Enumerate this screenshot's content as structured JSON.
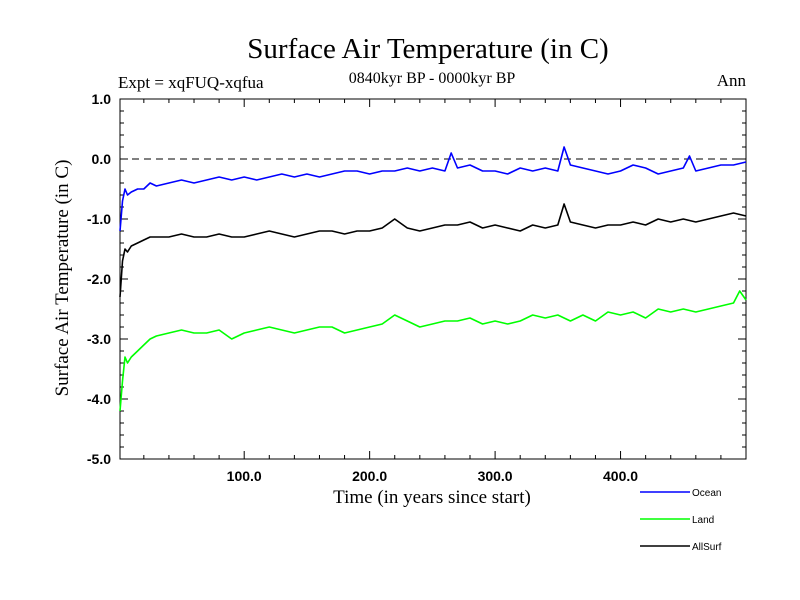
{
  "chart_data": {
    "type": "line",
    "title": "Surface Air Temperature (in C)",
    "subtitle": "0840kyr BP - 0000kyr BP",
    "expt_label": "Expt = xqFUQ-xqfua",
    "season_label": "Ann",
    "xlabel": "Time (in years since start)",
    "ylabel": "Surface Air Temperature (in C)",
    "xlim": [
      1,
      500
    ],
    "ylim": [
      -5.0,
      1.0
    ],
    "xticks": [
      100,
      200,
      300,
      400
    ],
    "xtick_labels": [
      "100.0",
      "200.0",
      "300.0",
      "400.0"
    ],
    "yticks": [
      1.0,
      0.0,
      -1.0,
      -2.0,
      -3.0,
      -4.0,
      -5.0
    ],
    "ytick_labels": [
      "1.0",
      "0.0",
      "-1.0",
      "-2.0",
      "-3.0",
      "-4.0",
      "-5.0"
    ],
    "reference_line": 0.0,
    "series": [
      {
        "name": "Ocean",
        "color": "#0000ff",
        "x": [
          1,
          3,
          5,
          7,
          10,
          15,
          20,
          25,
          30,
          40,
          50,
          60,
          70,
          80,
          90,
          100,
          110,
          120,
          130,
          140,
          150,
          160,
          170,
          180,
          190,
          200,
          210,
          220,
          230,
          240,
          250,
          260,
          265,
          270,
          280,
          290,
          300,
          310,
          320,
          330,
          340,
          350,
          355,
          360,
          370,
          380,
          390,
          400,
          410,
          420,
          430,
          440,
          450,
          455,
          460,
          470,
          480,
          490,
          500
        ],
        "values": [
          -1.2,
          -0.7,
          -0.5,
          -0.6,
          -0.55,
          -0.5,
          -0.5,
          -0.4,
          -0.45,
          -0.4,
          -0.35,
          -0.4,
          -0.35,
          -0.3,
          -0.35,
          -0.3,
          -0.35,
          -0.3,
          -0.25,
          -0.3,
          -0.25,
          -0.3,
          -0.25,
          -0.2,
          -0.2,
          -0.25,
          -0.2,
          -0.2,
          -0.15,
          -0.2,
          -0.15,
          -0.2,
          0.1,
          -0.15,
          -0.1,
          -0.2,
          -0.2,
          -0.25,
          -0.15,
          -0.2,
          -0.15,
          -0.2,
          0.2,
          -0.1,
          -0.15,
          -0.2,
          -0.25,
          -0.2,
          -0.1,
          -0.15,
          -0.25,
          -0.2,
          -0.15,
          0.05,
          -0.2,
          -0.15,
          -0.1,
          -0.1,
          -0.05
        ]
      },
      {
        "name": "Land",
        "color": "#00ff00",
        "x": [
          1,
          3,
          5,
          7,
          10,
          15,
          20,
          25,
          30,
          40,
          50,
          60,
          70,
          80,
          90,
          100,
          110,
          120,
          130,
          140,
          150,
          160,
          170,
          180,
          190,
          200,
          210,
          220,
          230,
          240,
          250,
          260,
          270,
          280,
          290,
          300,
          310,
          320,
          330,
          340,
          350,
          360,
          370,
          380,
          390,
          400,
          410,
          420,
          430,
          440,
          450,
          460,
          470,
          480,
          490,
          495,
          500
        ],
        "values": [
          -4.2,
          -3.7,
          -3.3,
          -3.4,
          -3.3,
          -3.2,
          -3.1,
          -3.0,
          -2.95,
          -2.9,
          -2.85,
          -2.9,
          -2.9,
          -2.85,
          -3.0,
          -2.9,
          -2.85,
          -2.8,
          -2.85,
          -2.9,
          -2.85,
          -2.8,
          -2.8,
          -2.9,
          -2.85,
          -2.8,
          -2.75,
          -2.6,
          -2.7,
          -2.8,
          -2.75,
          -2.7,
          -2.7,
          -2.65,
          -2.75,
          -2.7,
          -2.75,
          -2.7,
          -2.6,
          -2.65,
          -2.6,
          -2.7,
          -2.6,
          -2.7,
          -2.55,
          -2.6,
          -2.55,
          -2.65,
          -2.5,
          -2.55,
          -2.5,
          -2.55,
          -2.5,
          -2.45,
          -2.4,
          -2.2,
          -2.35
        ]
      },
      {
        "name": "AllSurf",
        "color": "#000000",
        "x": [
          1,
          3,
          5,
          7,
          10,
          15,
          20,
          25,
          30,
          40,
          50,
          60,
          70,
          80,
          90,
          100,
          110,
          120,
          130,
          140,
          150,
          160,
          170,
          180,
          190,
          200,
          210,
          220,
          230,
          240,
          250,
          260,
          270,
          280,
          290,
          300,
          310,
          320,
          330,
          340,
          350,
          355,
          360,
          370,
          380,
          390,
          400,
          410,
          420,
          430,
          440,
          450,
          460,
          470,
          480,
          490,
          500
        ],
        "values": [
          -2.3,
          -1.7,
          -1.5,
          -1.55,
          -1.45,
          -1.4,
          -1.35,
          -1.3,
          -1.3,
          -1.3,
          -1.25,
          -1.3,
          -1.3,
          -1.25,
          -1.3,
          -1.3,
          -1.25,
          -1.2,
          -1.25,
          -1.3,
          -1.25,
          -1.2,
          -1.2,
          -1.25,
          -1.2,
          -1.2,
          -1.15,
          -1.0,
          -1.15,
          -1.2,
          -1.15,
          -1.1,
          -1.1,
          -1.05,
          -1.15,
          -1.1,
          -1.15,
          -1.2,
          -1.1,
          -1.15,
          -1.1,
          -0.75,
          -1.05,
          -1.1,
          -1.15,
          -1.1,
          -1.1,
          -1.05,
          -1.1,
          -1.0,
          -1.05,
          -1.0,
          -1.05,
          -1.0,
          -0.95,
          -0.9,
          -0.95
        ]
      }
    ],
    "legend": [
      "Ocean",
      "Land",
      "AllSurf"
    ],
    "legend_position": "bottom-right"
  }
}
